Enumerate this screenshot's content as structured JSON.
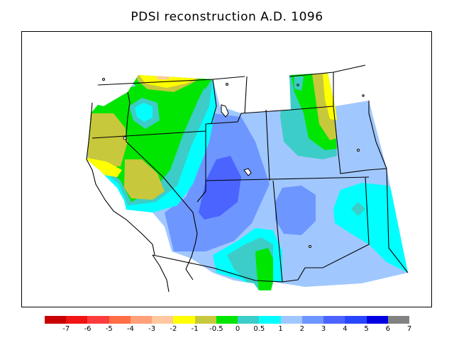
{
  "title": "PDSI reconstruction A.D. 1096",
  "legend": {
    "colors": [
      "#c80000",
      "#f01414",
      "#ff3c3c",
      "#ff6e46",
      "#ffa078",
      "#ffc8a0",
      "#ffff00",
      "#c8c83c",
      "#00e600",
      "#3ccdc8",
      "#00ffff",
      "#a0c8ff",
      "#6e96ff",
      "#4b64ff",
      "#2846ff",
      "#0000e1",
      "#828282"
    ],
    "labels": [
      "-7",
      "-6",
      "-5",
      "-4",
      "-3",
      "-2",
      "-1",
      "-0.5",
      "0",
      "0.5",
      "1",
      "2",
      "3",
      "4",
      "5",
      "6",
      "7"
    ]
  }
}
